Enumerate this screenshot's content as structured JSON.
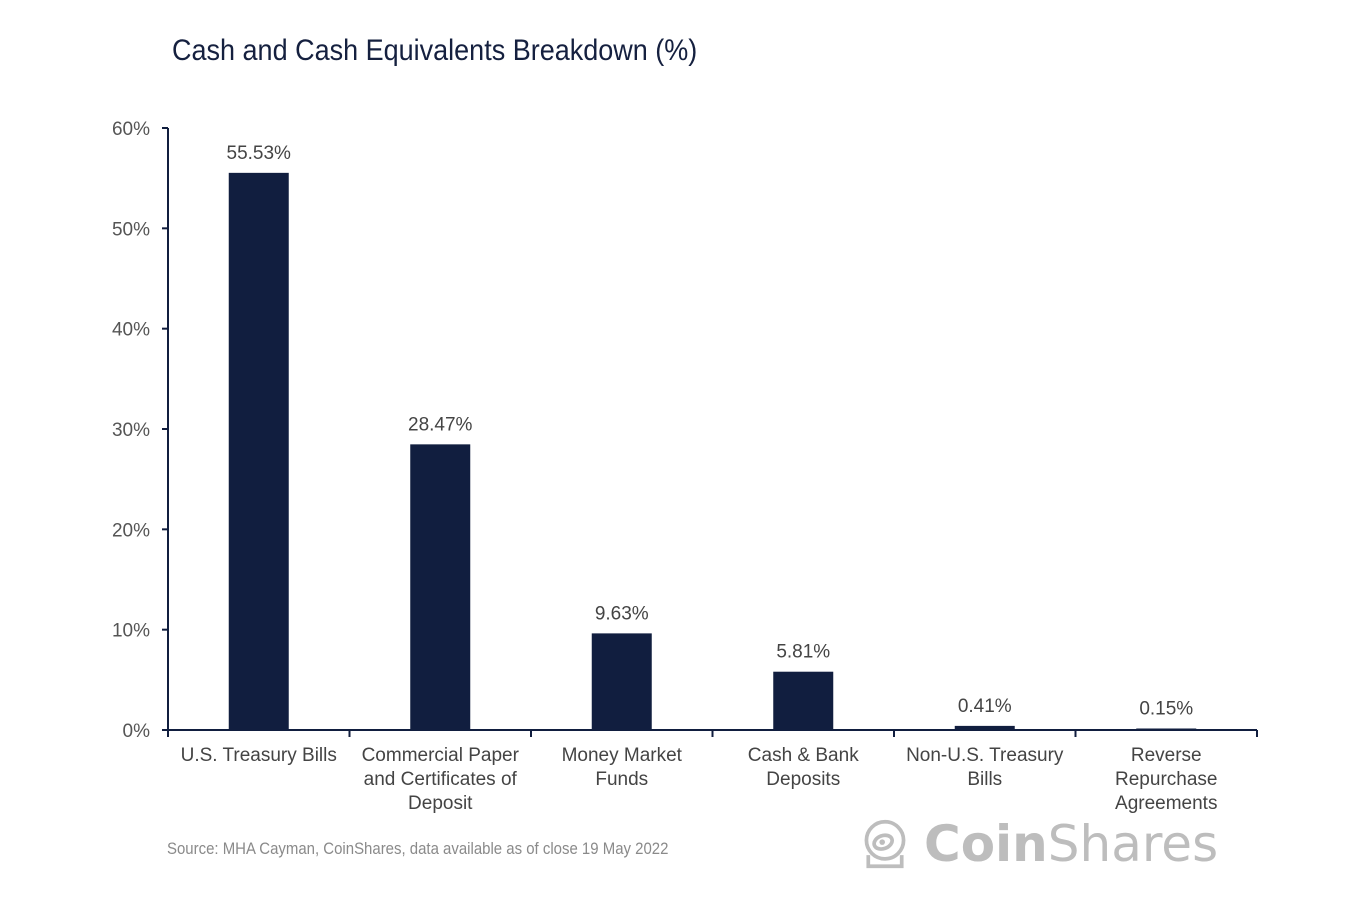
{
  "chart_data": {
    "type": "bar",
    "title": "Cash and Cash Equivalents Breakdown (%)",
    "categories": [
      [
        "U.S. Treasury Bills"
      ],
      [
        "Commercial Paper",
        "and Certificates of",
        "Deposit"
      ],
      [
        "Money Market",
        "Funds"
      ],
      [
        "Cash & Bank",
        "Deposits"
      ],
      [
        "Non-U.S. Treasury",
        "Bills"
      ],
      [
        "Reverse",
        "Repurchase",
        "Agreements"
      ]
    ],
    "values": [
      55.53,
      28.47,
      9.63,
      5.81,
      0.41,
      0.15
    ],
    "data_labels": [
      "55.53%",
      "28.47%",
      "9.63%",
      "5.81%",
      "0.41%",
      "0.15%"
    ],
    "ylim": [
      0,
      60
    ],
    "yticks": [
      0,
      10,
      20,
      30,
      40,
      50,
      60
    ],
    "ytick_labels": [
      "0%",
      "10%",
      "20%",
      "30%",
      "40%",
      "50%",
      "60%"
    ],
    "xlabel": "",
    "ylabel": "",
    "grid": false,
    "bar_color": "#111e3f",
    "axis_color": "#111e3f"
  },
  "source": "Source: MHA Cayman, CoinShares, data available as of close 19 May 2022",
  "logo": {
    "part1": "Coin",
    "part2": "Shares",
    "color": "#bdbdbd"
  }
}
